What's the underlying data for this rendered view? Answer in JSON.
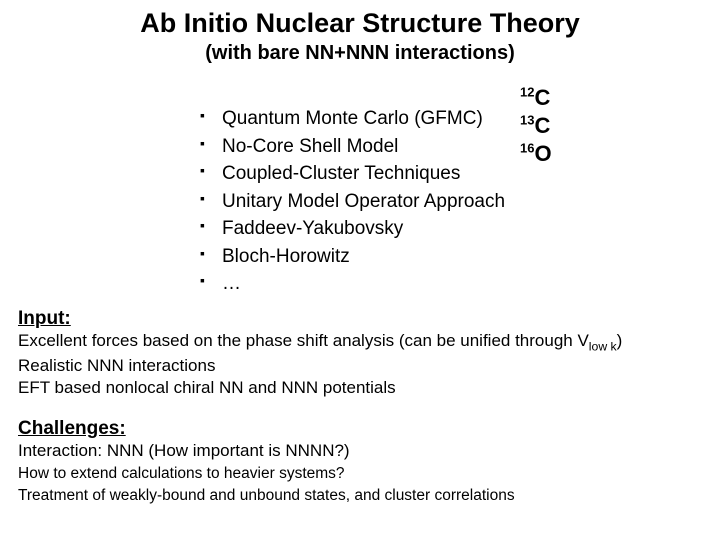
{
  "colors": {
    "text": "#000000",
    "background": "#ffffff"
  },
  "fonts": {
    "family": "Comic Sans MS",
    "title_size": 27,
    "subtitle_size": 20,
    "bullet_size": 19,
    "isotope_size": 22,
    "body_size": 17
  },
  "title": "Ab Initio Nuclear Structure Theory",
  "subtitle": "(with bare NN+NNN interactions)",
  "bullets": [
    "Quantum Monte Carlo (GFMC)",
    "No-Core Shell Model",
    "Coupled-Cluster Techniques",
    "Unitary Model Operator Approach",
    "Faddeev-Yakubovsky",
    "Bloch-Horowitz",
    "…"
  ],
  "isotopes": [
    {
      "mass": "12",
      "symbol": "C"
    },
    {
      "mass": "13",
      "symbol": "C"
    },
    {
      "mass": "16",
      "symbol": "O"
    }
  ],
  "input_heading": "Input:",
  "input_line1a": "Excellent forces based on the phase shift analysis (can be unified through V",
  "input_line1b": ")",
  "input_vlow_sub": "low k",
  "input_line2": "Realistic NNN interactions",
  "input_line3": "EFT based nonlocal chiral NN and NNN potentials",
  "challenges_heading": "Challenges:",
  "challenges_line1": "Interaction: NNN (How important is NNNN?)",
  "challenges_line2": "How to extend calculations to heavier systems?",
  "challenges_line3": "Treatment of weakly-bound and unbound states, and cluster correlations"
}
